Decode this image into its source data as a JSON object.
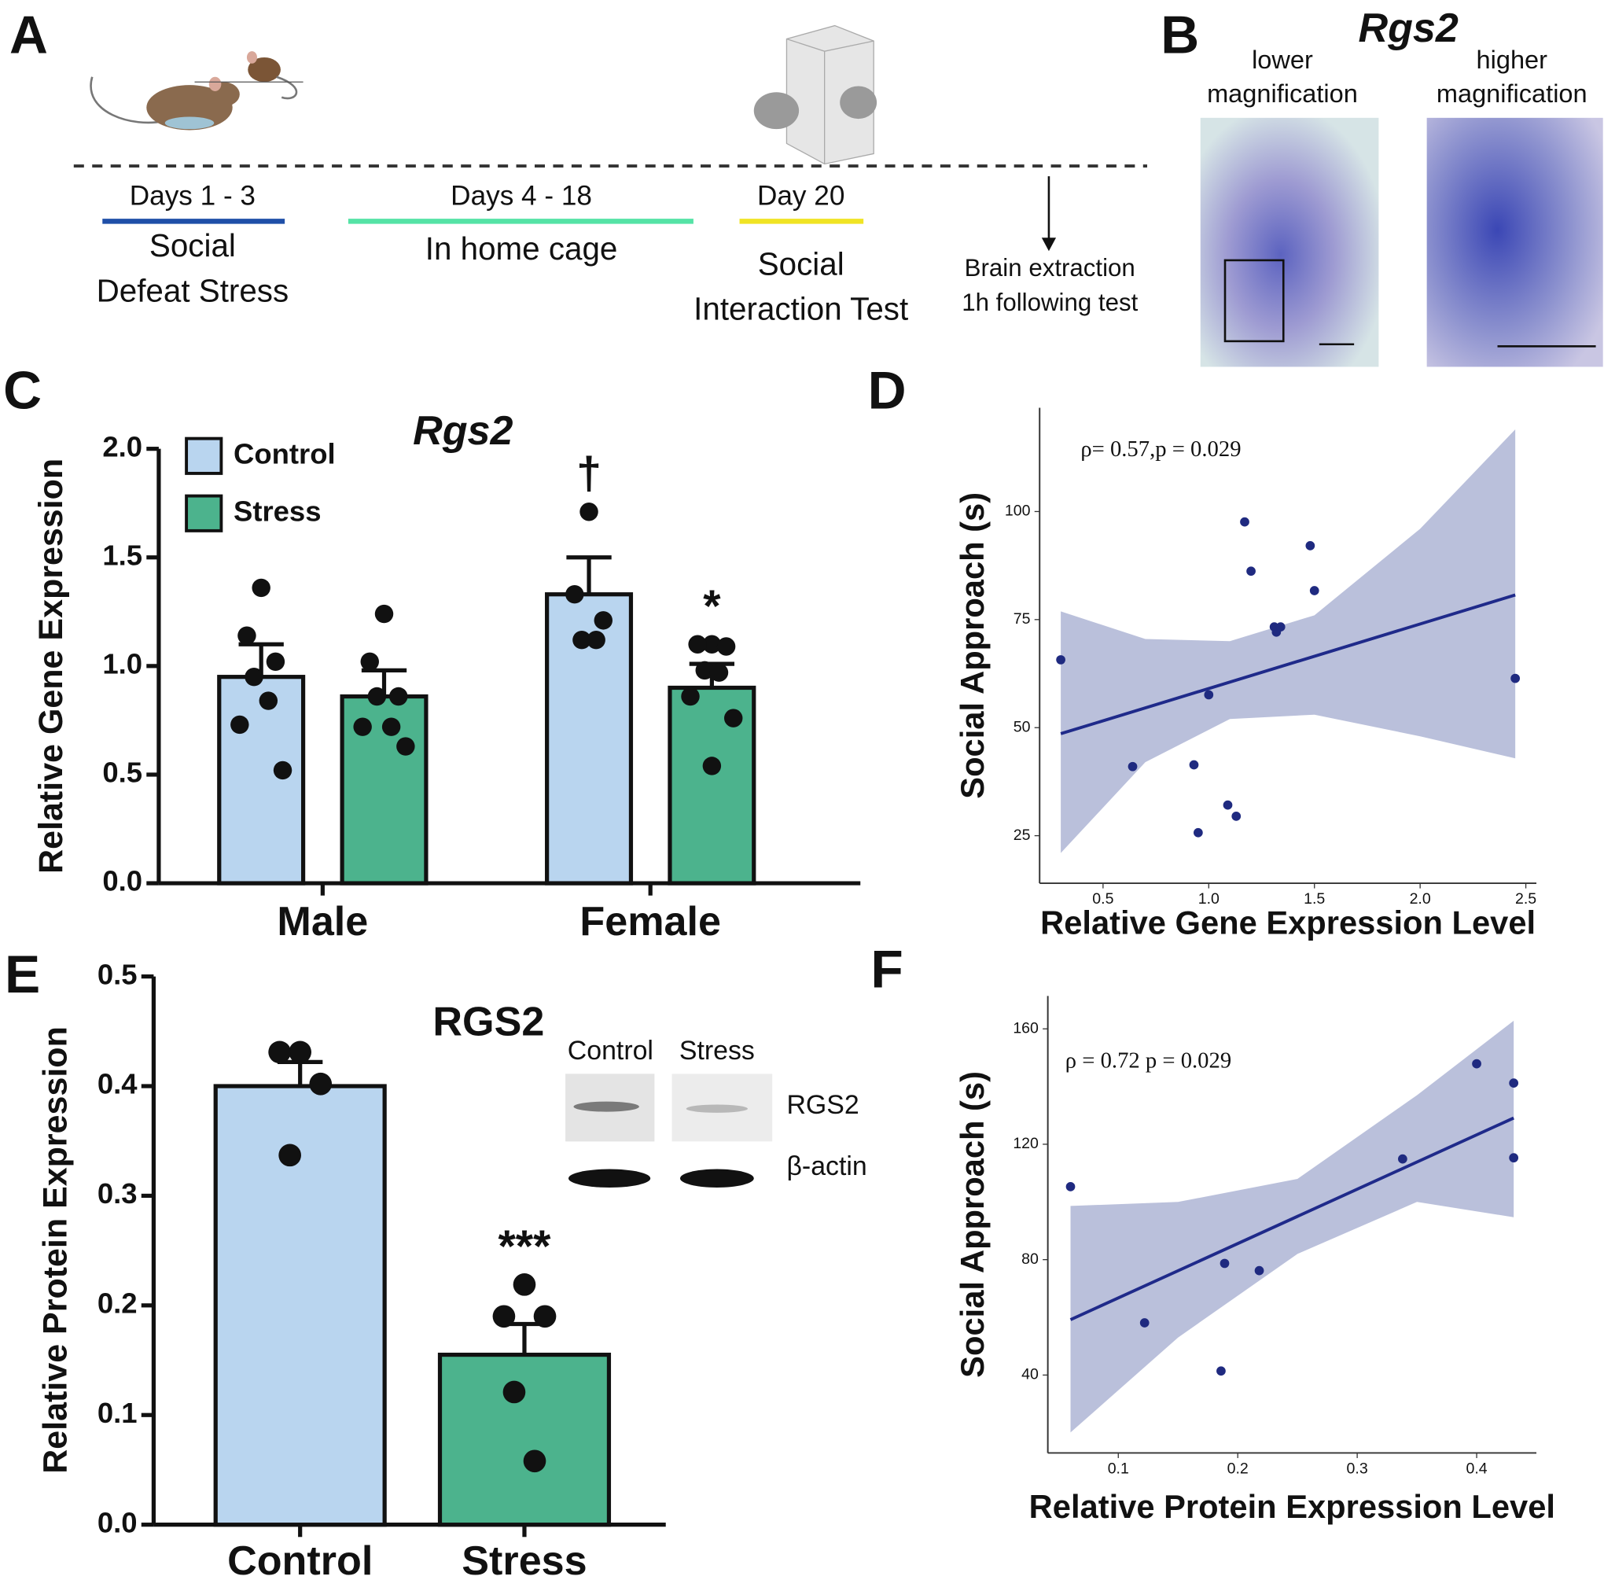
{
  "panel_a": {
    "label": "A",
    "stages": [
      {
        "days": "Days 1 - 3",
        "color": "#1f4fa8",
        "event": [
          "Social",
          "Defeat Stress"
        ]
      },
      {
        "days": "Days 4 - 18",
        "color": "#55e3a6",
        "event": [
          "In home cage"
        ]
      },
      {
        "days": "Day 20",
        "color": "#f0e424",
        "event": [
          "Social",
          "Interaction Test"
        ]
      }
    ],
    "endpoint": [
      "Brain extraction",
      "1h following test"
    ]
  },
  "panel_b": {
    "label": "B",
    "title": "Rgs2",
    "captions": [
      [
        "lower",
        "magnification"
      ],
      [
        "higher",
        "magnification"
      ]
    ]
  },
  "chart_data": [
    {
      "panel": "C",
      "type": "bar",
      "title": "Rgs2",
      "y_label": "Relative Gene Expression",
      "categories": [
        "Male",
        "Female"
      ],
      "ylim": [
        0,
        2
      ],
      "yticks": [
        {
          "value": 0,
          "label": "0.0"
        },
        0.5,
        {
          "value": 1,
          "label": "1.0"
        },
        1.5,
        {
          "value": 2,
          "label": "2.0"
        }
      ],
      "legend": "upper left",
      "series": [
        {
          "name": "Control",
          "color": "#b9d5ef",
          "values": [
            0.95,
            1.33
          ],
          "errors": [
            0.15,
            0.17
          ],
          "points": [
            [
              1.36,
              1.14,
              1.02,
              0.95,
              0.84,
              0.73,
              0.52
            ],
            [
              1.71,
              1.33,
              1.21,
              1.12,
              1.12
            ]
          ],
          "annotations": [
            null,
            "†"
          ]
        },
        {
          "name": "Stress",
          "color": "#4cb38d",
          "values": [
            0.86,
            0.9
          ],
          "errors": [
            0.12,
            0.11
          ],
          "points": [
            [
              1.24,
              1.02,
              0.86,
              0.86,
              0.72,
              0.72,
              0.63
            ],
            [
              1.1,
              1.1,
              1.09,
              0.98,
              0.97,
              0.86,
              0.76,
              0.54
            ]
          ],
          "annotations": [
            null,
            "*"
          ]
        }
      ]
    },
    {
      "panel": "D",
      "type": "scatter",
      "stat": "ρ= 0.57,p = 0.029",
      "x_label": "Relative Gene Expression Level",
      "y_label": "Social Approach (s)",
      "xlim": [
        0.2,
        2.55
      ],
      "ylim": [
        14,
        124
      ],
      "xticks": [
        0.5,
        {
          "value": 1,
          "label": "1.0"
        },
        1.5,
        {
          "value": 2,
          "label": "2.0"
        },
        2.5
      ],
      "yticks": [
        25,
        50,
        75,
        100
      ],
      "color": "#1f2a80",
      "x": [
        0.3,
        0.64,
        0.93,
        0.95,
        1.0,
        1.09,
        1.13,
        1.17,
        1.2,
        1.31,
        1.32,
        1.34,
        1.48,
        1.5,
        2.45
      ],
      "y": [
        65.7,
        41.0,
        41.4,
        25.7,
        57.6,
        32.1,
        29.5,
        97.6,
        86.2,
        73.3,
        72.1,
        73.3,
        92.1,
        81.7,
        61.4
      ],
      "fit": {
        "x": [
          0.3,
          2.45
        ],
        "y": [
          48.6,
          80.7
        ],
        "color": "#1f2a8a"
      },
      "band": {
        "x": [
          0.3,
          0.7,
          1.1,
          1.5,
          2.0,
          2.45
        ],
        "upper": [
          76.9,
          70.5,
          70,
          76,
          96,
          119
        ],
        "lower": [
          21,
          42,
          52,
          53,
          48,
          42.9
        ],
        "color": "#b6bdd9"
      }
    },
    {
      "panel": "E",
      "type": "bar",
      "title": "RGS2",
      "y_label": "Relative  Protein Expression",
      "categories": [
        "Control",
        "Stress"
      ],
      "ylim": [
        0,
        0.5
      ],
      "yticks": [
        {
          "value": 0,
          "label": "0.0"
        },
        0.1,
        0.2,
        0.3,
        0.4,
        0.5
      ],
      "series": [
        {
          "colors": [
            "#b9d5ef",
            "#4cb38d"
          ],
          "values": [
            0.4,
            0.155
          ],
          "errors": [
            0.022,
            0.028
          ],
          "points": [
            [
              0.431,
              0.431,
              0.402,
              0.337
            ],
            [
              0.219,
              0.19,
              0.19,
              0.121,
              0.058
            ]
          ],
          "annotations": [
            null,
            "***"
          ]
        }
      ],
      "inset": {
        "lanes": [
          "Control",
          "Stress"
        ],
        "bands": [
          "RGS2",
          "β-actin"
        ]
      }
    },
    {
      "panel": "F",
      "type": "scatter",
      "stat": "ρ = 0.72   p = 0.029",
      "x_label": "Relative Protein Expression Level",
      "y_label": "Social Approach (s)",
      "xlim": [
        0.041,
        0.45
      ],
      "ylim": [
        13,
        171.4
      ],
      "xticks": [
        0.1,
        0.2,
        0.3,
        0.4
      ],
      "yticks": [
        40,
        80,
        120,
        160
      ],
      "color": "#1f2a80",
      "x": [
        0.06,
        0.122,
        0.186,
        0.189,
        0.218,
        0.338,
        0.4,
        0.431,
        0.431
      ],
      "y": [
        105.3,
        58.1,
        41.4,
        78.7,
        76.2,
        114.9,
        147.9,
        141.2,
        115.3
      ],
      "fit": {
        "x": [
          0.06,
          0.431
        ],
        "y": [
          59.2,
          129.1
        ],
        "color": "#1f2a8a"
      },
      "band": {
        "x": [
          0.06,
          0.15,
          0.25,
          0.35,
          0.431
        ],
        "upper": [
          98.6,
          100,
          108,
          137,
          162.8
        ],
        "lower": [
          20.1,
          53,
          82,
          100,
          94.7
        ],
        "color": "#b6bdd9"
      }
    }
  ]
}
